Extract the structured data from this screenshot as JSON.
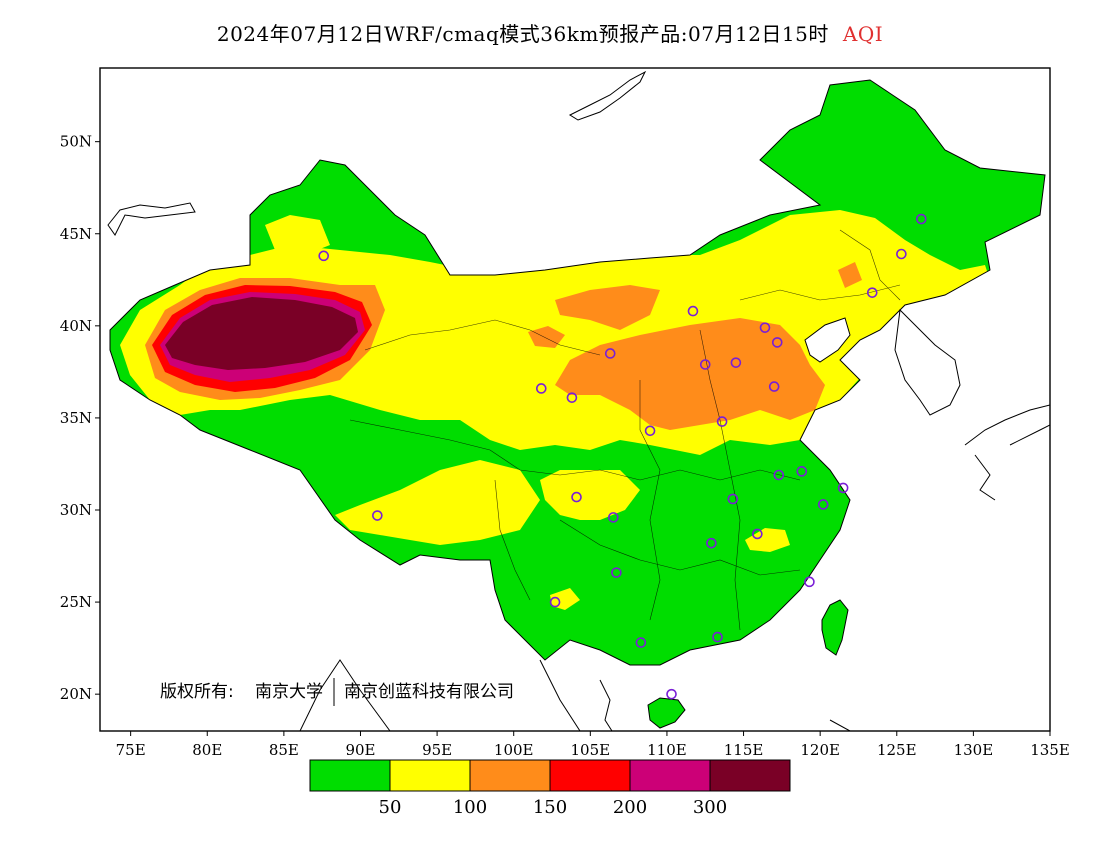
{
  "title": {
    "main": "2024年07月12日WRF/cmaq模式36km预报产品:07月12日15时",
    "variable": "AQI"
  },
  "map": {
    "lon_range": [
      73,
      135
    ],
    "lat_range": [
      18,
      54
    ],
    "x_ticks": [
      "75E",
      "80E",
      "85E",
      "90E",
      "95E",
      "100E",
      "105E",
      "110E",
      "115E",
      "120E",
      "125E",
      "130E",
      "135E"
    ],
    "y_ticks": [
      "20N",
      "25N",
      "30N",
      "35N",
      "40N",
      "45N",
      "50N"
    ],
    "copyright_parts": [
      "版权所有:",
      "南京大学",
      "南京创蓝科技有限公司"
    ]
  },
  "legend": {
    "colors": [
      "#00dd00",
      "#ffff00",
      "#ff8c1a",
      "#ff0000",
      "#cc0077",
      "#7a0026"
    ],
    "labels": [
      "50",
      "100",
      "150",
      "200",
      "300"
    ]
  },
  "cities": [
    [
      87.6,
      43.8
    ],
    [
      91.1,
      29.7
    ],
    [
      101.8,
      36.6
    ],
    [
      103.8,
      36.1
    ],
    [
      106.3,
      38.5
    ],
    [
      111.7,
      40.8
    ],
    [
      112.5,
      37.9
    ],
    [
      114.5,
      38.0
    ],
    [
      116.4,
      39.9
    ],
    [
      117.2,
      39.1
    ],
    [
      117.0,
      36.7
    ],
    [
      113.6,
      34.8
    ],
    [
      108.9,
      34.3
    ],
    [
      104.1,
      30.7
    ],
    [
      106.5,
      29.6
    ],
    [
      106.7,
      26.6
    ],
    [
      102.7,
      25.0
    ],
    [
      108.3,
      22.8
    ],
    [
      113.3,
      23.1
    ],
    [
      110.3,
      20.0
    ],
    [
      112.9,
      28.2
    ],
    [
      114.3,
      30.6
    ],
    [
      115.9,
      28.7
    ],
    [
      117.3,
      31.9
    ],
    [
      118.8,
      32.1
    ],
    [
      120.2,
      30.3
    ],
    [
      121.5,
      31.2
    ],
    [
      119.3,
      26.1
    ],
    [
      123.4,
      41.8
    ],
    [
      125.3,
      43.9
    ],
    [
      126.6,
      45.8
    ]
  ]
}
